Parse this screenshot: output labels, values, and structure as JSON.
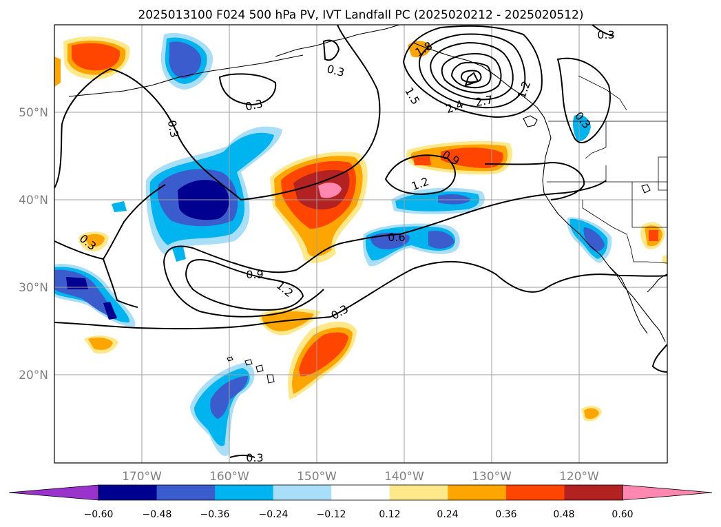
{
  "title": "2025013100 F024 500 hPa PV, IVT Landfall PC (2025020212 - 2025020512)",
  "latitude_labels": [
    "50°N",
    "40°N",
    "30°N",
    "20°N"
  ],
  "longitude_labels": [
    "170°W",
    "160°W",
    "150°W",
    "140°W",
    "130°W",
    "120°W"
  ],
  "contour_labels": [
    "0.3",
    "0.3",
    "0.3",
    "0.3",
    "0.3",
    "0.3",
    "0.3",
    "0.6",
    "0.9",
    "0.9",
    "1.2",
    "1.2",
    "1.2",
    "1.5",
    "1.8",
    "2.4",
    "2.7"
  ],
  "colorbar": {
    "ticks": [
      "−0.60",
      "−0.48",
      "−0.36",
      "−0.24",
      "−0.12",
      "0.12",
      "0.24",
      "0.36",
      "0.48",
      "0.60"
    ],
    "colors": [
      "#9933cc",
      "#000090",
      "#3a5ccc",
      "#00b4f0",
      "#a8def8",
      "#ffffff",
      "#ffe88a",
      "#ffa500",
      "#ff4500",
      "#b22222",
      "#ff88b0"
    ],
    "extend": "both"
  },
  "map": {
    "projection": "PlateCarree",
    "lon_range": [
      "180°",
      "110°W"
    ],
    "lat_range": [
      "10°N",
      "60°N"
    ],
    "gridlines": true,
    "features": [
      "coastlines",
      "country-borders",
      "state-borders"
    ]
  }
}
